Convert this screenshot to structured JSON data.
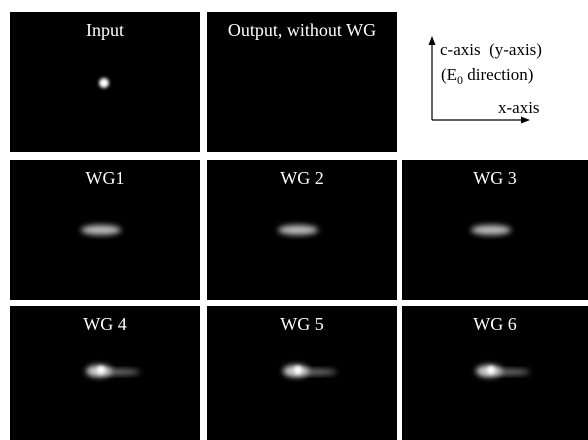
{
  "panels": [
    {
      "label": "Input"
    },
    {
      "label": "Output, without WG"
    },
    {
      "label": "WG1"
    },
    {
      "label": "WG 2"
    },
    {
      "label": "WG 3"
    },
    {
      "label": "WG 4"
    },
    {
      "label": "WG 5"
    },
    {
      "label": "WG 6"
    }
  ],
  "axes_legend": {
    "y_label": "c-axis  (y-axis)",
    "direction": {
      "prefix": "(E",
      "sub": "0",
      "suffix": " direction)"
    },
    "x_label": "x-axis"
  }
}
